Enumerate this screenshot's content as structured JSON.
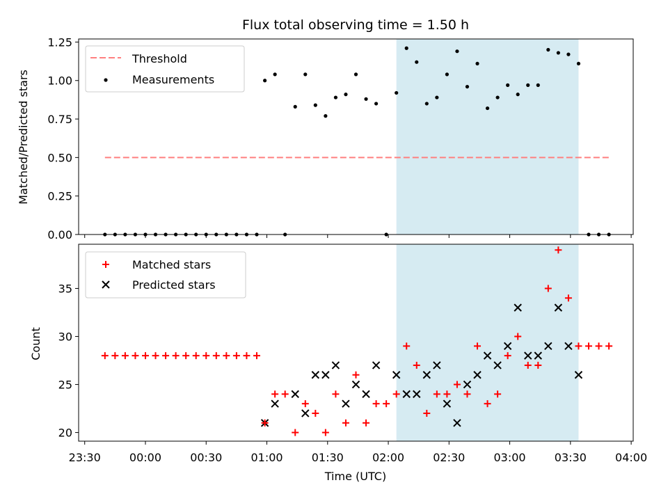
{
  "chart_data": [
    {
      "type": "scatter",
      "panel": "top",
      "title": "Flux total observing time = 1.50 h",
      "ylabel": "Matched/Predicted stars",
      "ylim": [
        0,
        1.27
      ],
      "yticks": [
        "0.00",
        "0.25",
        "0.50",
        "0.75",
        "1.00",
        "1.25"
      ],
      "yticks_values": [
        0,
        0.25,
        0.5,
        0.75,
        1.0,
        1.25
      ],
      "xlim": [
        "23:27",
        "04:01"
      ],
      "shaded_region": {
        "start": "02:04",
        "end": "03:34",
        "color": "#add8e6"
      },
      "legend": {
        "placement": "top-left",
        "entries": [
          "Threshold",
          "Measurements"
        ]
      },
      "threshold": {
        "name": "Threshold",
        "y": 0.5,
        "x_start": "23:40",
        "x_end": "03:50",
        "color": "#ff7f7f",
        "style": "dashed"
      },
      "series": [
        {
          "name": "Measurements",
          "color": "#000000",
          "points": [
            [
              "23:40",
              0
            ],
            [
              "23:45",
              0
            ],
            [
              "23:50",
              0
            ],
            [
              "23:55",
              0
            ],
            [
              "00:00",
              0
            ],
            [
              "00:05",
              0
            ],
            [
              "00:10",
              0
            ],
            [
              "00:15",
              0
            ],
            [
              "00:20",
              0
            ],
            [
              "00:25",
              0
            ],
            [
              "00:30",
              0
            ],
            [
              "00:35",
              0
            ],
            [
              "00:40",
              0
            ],
            [
              "00:45",
              0
            ],
            [
              "00:50",
              0
            ],
            [
              "00:55",
              0
            ],
            [
              "00:59",
              1.0
            ],
            [
              "01:04",
              1.04
            ],
            [
              "01:09",
              0
            ],
            [
              "01:14",
              0.83
            ],
            [
              "01:19",
              1.04
            ],
            [
              "01:24",
              0.84
            ],
            [
              "01:29",
              0.77
            ],
            [
              "01:34",
              0.89
            ],
            [
              "01:39",
              0.91
            ],
            [
              "01:44",
              1.04
            ],
            [
              "01:49",
              0.88
            ],
            [
              "01:54",
              0.85
            ],
            [
              "01:59",
              0
            ],
            [
              "02:04",
              0.92
            ],
            [
              "02:09",
              1.21
            ],
            [
              "02:14",
              1.12
            ],
            [
              "02:19",
              0.85
            ],
            [
              "02:24",
              0.89
            ],
            [
              "02:29",
              1.04
            ],
            [
              "02:34",
              1.19
            ],
            [
              "02:39",
              0.96
            ],
            [
              "02:44",
              1.11
            ],
            [
              "02:49",
              0.82
            ],
            [
              "02:54",
              0.89
            ],
            [
              "02:59",
              0.97
            ],
            [
              "03:04",
              0.91
            ],
            [
              "03:09",
              0.97
            ],
            [
              "03:14",
              0.97
            ],
            [
              "03:19",
              1.2
            ],
            [
              "03:24",
              1.18
            ],
            [
              "03:29",
              1.17
            ],
            [
              "03:34",
              1.11
            ],
            [
              "03:39",
              0
            ],
            [
              "03:44",
              0
            ],
            [
              "03:49",
              0
            ]
          ]
        }
      ]
    },
    {
      "type": "scatter",
      "panel": "bottom",
      "xlabel": "Time (UTC)",
      "ylabel": "Count",
      "ylim": [
        19.1,
        39.6
      ],
      "yticks": [
        "20",
        "25",
        "30",
        "35"
      ],
      "yticks_values": [
        20,
        25,
        30,
        35
      ],
      "xlim": [
        "23:27",
        "04:01"
      ],
      "xticks": [
        "23:30",
        "00:00",
        "00:30",
        "01:00",
        "01:30",
        "02:00",
        "02:30",
        "03:00",
        "03:30",
        "04:00"
      ],
      "shaded_region": {
        "start": "02:04",
        "end": "03:34",
        "color": "#add8e6"
      },
      "legend": {
        "placement": "top-left",
        "entries": [
          "Matched stars",
          "Predicted stars"
        ]
      },
      "series": [
        {
          "name": "Matched stars",
          "marker": "plus",
          "color": "#ff0000",
          "points": [
            [
              "23:40",
              28
            ],
            [
              "23:45",
              28
            ],
            [
              "23:50",
              28
            ],
            [
              "23:55",
              28
            ],
            [
              "00:00",
              28
            ],
            [
              "00:05",
              28
            ],
            [
              "00:10",
              28
            ],
            [
              "00:15",
              28
            ],
            [
              "00:20",
              28
            ],
            [
              "00:25",
              28
            ],
            [
              "00:30",
              28
            ],
            [
              "00:35",
              28
            ],
            [
              "00:40",
              28
            ],
            [
              "00:45",
              28
            ],
            [
              "00:50",
              28
            ],
            [
              "00:55",
              28
            ],
            [
              "00:59",
              21
            ],
            [
              "01:04",
              24
            ],
            [
              "01:09",
              24
            ],
            [
              "01:14",
              20
            ],
            [
              "01:19",
              23
            ],
            [
              "01:24",
              22
            ],
            [
              "01:29",
              20
            ],
            [
              "01:34",
              24
            ],
            [
              "01:39",
              21
            ],
            [
              "01:44",
              26
            ],
            [
              "01:49",
              21
            ],
            [
              "01:54",
              23
            ],
            [
              "01:59",
              23
            ],
            [
              "02:04",
              24
            ],
            [
              "02:09",
              29
            ],
            [
              "02:14",
              27
            ],
            [
              "02:19",
              22
            ],
            [
              "02:24",
              24
            ],
            [
              "02:29",
              24
            ],
            [
              "02:34",
              25
            ],
            [
              "02:39",
              24
            ],
            [
              "02:44",
              29
            ],
            [
              "02:49",
              23
            ],
            [
              "02:54",
              24
            ],
            [
              "02:59",
              28
            ],
            [
              "03:04",
              30
            ],
            [
              "03:09",
              27
            ],
            [
              "03:14",
              27
            ],
            [
              "03:19",
              35
            ],
            [
              "03:24",
              39
            ],
            [
              "03:29",
              34
            ],
            [
              "03:34",
              29
            ],
            [
              "03:39",
              29
            ],
            [
              "03:44",
              29
            ],
            [
              "03:49",
              29
            ]
          ]
        },
        {
          "name": "Predicted stars",
          "marker": "x",
          "color": "#000000",
          "points": [
            [
              "00:59",
              21
            ],
            [
              "01:04",
              23
            ],
            [
              "01:14",
              24
            ],
            [
              "01:19",
              22
            ],
            [
              "01:24",
              26
            ],
            [
              "01:29",
              26
            ],
            [
              "01:34",
              27
            ],
            [
              "01:39",
              23
            ],
            [
              "01:44",
              25
            ],
            [
              "01:49",
              24
            ],
            [
              "01:54",
              27
            ],
            [
              "02:04",
              26
            ],
            [
              "02:09",
              24
            ],
            [
              "02:14",
              24
            ],
            [
              "02:19",
              26
            ],
            [
              "02:24",
              27
            ],
            [
              "02:29",
              23
            ],
            [
              "02:34",
              21
            ],
            [
              "02:39",
              25
            ],
            [
              "02:44",
              26
            ],
            [
              "02:49",
              28
            ],
            [
              "02:54",
              27
            ],
            [
              "02:59",
              29
            ],
            [
              "03:04",
              33
            ],
            [
              "03:09",
              28
            ],
            [
              "03:14",
              28
            ],
            [
              "03:19",
              29
            ],
            [
              "03:24",
              33
            ],
            [
              "03:29",
              29
            ],
            [
              "03:34",
              26
            ]
          ]
        }
      ]
    }
  ]
}
